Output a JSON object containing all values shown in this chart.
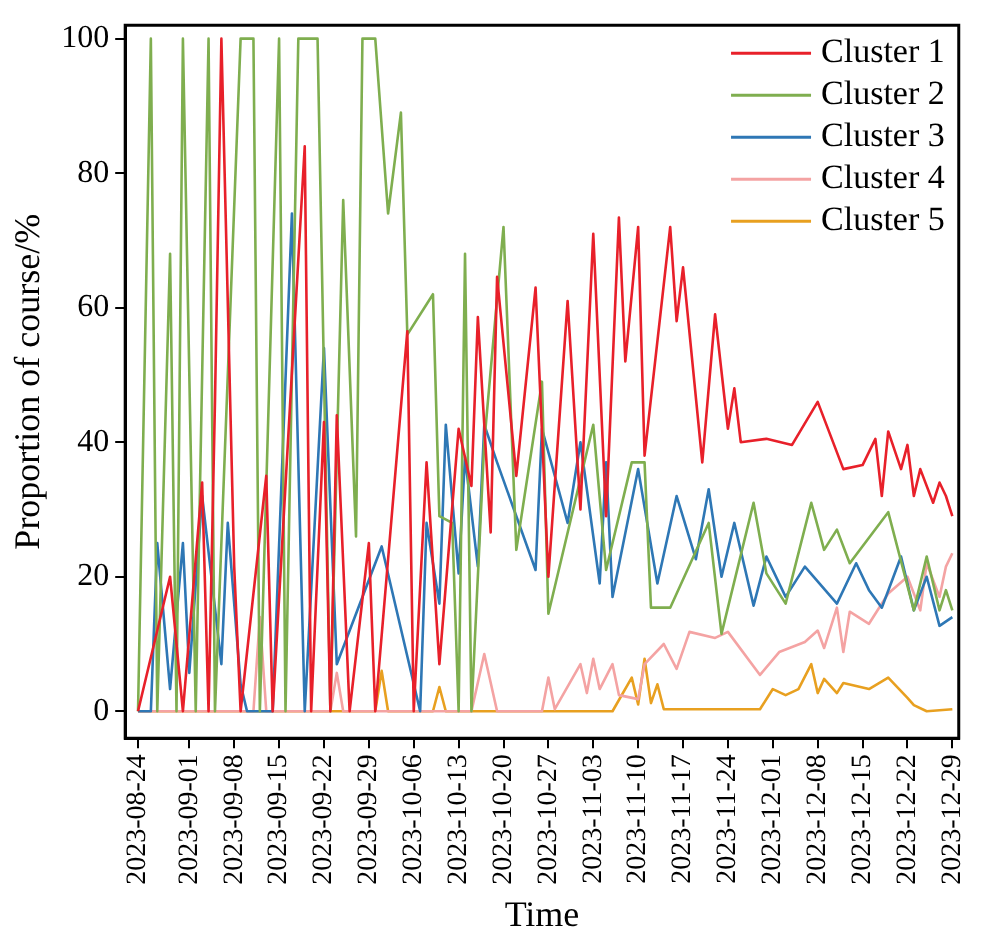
{
  "chart_data": {
    "type": "line",
    "xlabel": "Time",
    "ylabel": "Proportion of course/%",
    "xlim": [
      "2023-08-22",
      "2023-12-30"
    ],
    "xticks": [
      "2023-08-24",
      "2023-09-01",
      "2023-09-08",
      "2023-09-15",
      "2023-09-22",
      "2023-09-29",
      "2023-10-06",
      "2023-10-13",
      "2023-10-20",
      "2023-10-27",
      "2023-11-03",
      "2023-11-10",
      "2023-11-17",
      "2023-11-24",
      "2023-12-01",
      "2023-12-08",
      "2023-12-15",
      "2023-12-22",
      "2023-12-29"
    ],
    "ylim": [
      -4,
      102
    ],
    "yticks": [
      0,
      20,
      40,
      60,
      80,
      100
    ],
    "grid": false,
    "legend": "top right",
    "marker": "none",
    "line_style": "solid",
    "series": [
      {
        "name": "Cluster 1",
        "color": "#e8202a",
        "x": [
          "2023-08-24",
          "2023-08-29",
          "2023-08-31",
          "2023-09-03",
          "2023-09-04",
          "2023-09-05",
          "2023-09-06",
          "2023-09-08",
          "2023-09-09",
          "2023-09-13",
          "2023-09-14",
          "2023-09-19",
          "2023-09-20",
          "2023-09-22",
          "2023-09-23",
          "2023-09-24",
          "2023-09-26",
          "2023-09-29",
          "2023-09-30",
          "2023-10-05",
          "2023-10-06",
          "2023-10-08",
          "2023-10-10",
          "2023-10-13",
          "2023-10-15",
          "2023-10-16",
          "2023-10-18",
          "2023-10-19",
          "2023-10-22",
          "2023-10-25",
          "2023-10-27",
          "2023-10-30",
          "2023-11-01",
          "2023-11-03",
          "2023-11-05",
          "2023-11-07",
          "2023-11-08",
          "2023-11-10",
          "2023-11-11",
          "2023-11-15",
          "2023-11-16",
          "2023-11-17",
          "2023-11-20",
          "2023-11-22",
          "2023-11-24",
          "2023-11-25",
          "2023-11-26",
          "2023-11-30",
          "2023-12-04",
          "2023-12-08",
          "2023-12-12",
          "2023-12-15",
          "2023-12-17",
          "2023-12-18",
          "2023-12-19",
          "2023-12-21",
          "2023-12-22",
          "2023-12-23",
          "2023-12-24",
          "2023-12-26",
          "2023-12-27",
          "2023-12-28",
          "2023-12-29"
        ],
        "values": [
          0,
          20,
          0,
          34,
          0,
          46,
          100,
          21.5,
          0,
          35,
          0,
          84,
          0,
          43,
          0,
          44,
          0,
          25,
          0,
          56.5,
          0,
          37,
          7,
          42,
          33.5,
          58.6,
          26.6,
          64.6,
          35,
          63,
          20,
          61,
          30,
          71,
          29,
          73.4,
          52,
          72,
          38,
          72,
          58,
          66,
          37,
          59,
          42,
          48,
          40,
          40.5,
          39.6,
          46,
          36,
          36.6,
          40.5,
          32,
          41.6,
          36,
          39.6,
          32,
          36,
          31,
          34,
          32,
          29
        ]
      },
      {
        "name": "Cluster 2",
        "color": "#7fae4f",
        "x": [
          "2023-08-24",
          "2023-08-26",
          "2023-08-27",
          "2023-08-29",
          "2023-08-30",
          "2023-08-31",
          "2023-09-02",
          "2023-09-04",
          "2023-09-05",
          "2023-09-09",
          "2023-09-11",
          "2023-09-12",
          "2023-09-15",
          "2023-09-16",
          "2023-09-18",
          "2023-09-21",
          "2023-09-23",
          "2023-09-25",
          "2023-09-27",
          "2023-09-28",
          "2023-09-30",
          "2023-10-02",
          "2023-10-04",
          "2023-10-05",
          "2023-10-09",
          "2023-10-10",
          "2023-10-12",
          "2023-10-13",
          "2023-10-14",
          "2023-10-15",
          "2023-10-17",
          "2023-10-20",
          "2023-10-22",
          "2023-10-26",
          "2023-10-27",
          "2023-11-03",
          "2023-11-05",
          "2023-11-09",
          "2023-11-11",
          "2023-11-12",
          "2023-11-15",
          "2023-11-21",
          "2023-11-23",
          "2023-11-28",
          "2023-11-30",
          "2023-12-03",
          "2023-12-07",
          "2023-12-09",
          "2023-12-11",
          "2023-12-13",
          "2023-12-19",
          "2023-12-23",
          "2023-12-25",
          "2023-12-27",
          "2023-12-28",
          "2023-12-29"
        ],
        "values": [
          0,
          100,
          0,
          68,
          0,
          100,
          0,
          100,
          0,
          100,
          100,
          0,
          100,
          0,
          100,
          100,
          0,
          76,
          26,
          100,
          100,
          74,
          89,
          56,
          62,
          29,
          28,
          0,
          68,
          0,
          40,
          72,
          24,
          49,
          14.5,
          42.6,
          21,
          37,
          37,
          15.4,
          15.4,
          28,
          11.5,
          31,
          20.5,
          16,
          31,
          24,
          27,
          22,
          29.6,
          15,
          23,
          15,
          18,
          15
        ]
      },
      {
        "name": "Cluster 3",
        "color": "#2e77b5",
        "x": [
          "2023-08-24",
          "2023-08-26",
          "2023-08-27",
          "2023-08-29",
          "2023-08-31",
          "2023-09-01",
          "2023-09-03",
          "2023-09-06",
          "2023-09-07",
          "2023-09-09",
          "2023-09-10",
          "2023-09-14",
          "2023-09-17",
          "2023-09-19",
          "2023-09-22",
          "2023-09-24",
          "2023-10-01",
          "2023-10-07",
          "2023-10-08",
          "2023-10-10",
          "2023-10-11",
          "2023-10-13",
          "2023-10-14",
          "2023-10-16",
          "2023-10-17",
          "2023-10-19",
          "2023-10-25",
          "2023-10-26",
          "2023-10-30",
          "2023-11-01",
          "2023-11-04",
          "2023-11-05",
          "2023-11-06",
          "2023-11-10",
          "2023-11-13",
          "2023-11-16",
          "2023-11-19",
          "2023-11-21",
          "2023-11-23",
          "2023-11-25",
          "2023-11-28",
          "2023-11-30",
          "2023-12-03",
          "2023-12-06",
          "2023-12-11",
          "2023-12-14",
          "2023-12-16",
          "2023-12-18",
          "2023-12-21",
          "2023-12-23",
          "2023-12-25",
          "2023-12-27",
          "2023-12-29"
        ],
        "values": [
          0,
          0,
          25,
          3.3,
          25,
          5.7,
          32,
          7,
          28,
          4,
          0,
          0,
          74,
          0,
          54,
          7,
          24.5,
          0,
          28,
          16,
          42.6,
          20.5,
          37.8,
          21.5,
          42.6,
          37,
          21,
          42,
          28,
          40,
          19,
          37,
          17,
          36,
          19,
          32,
          22.6,
          33,
          20,
          28,
          15.7,
          23,
          17,
          21.5,
          16,
          22,
          18,
          15.4,
          23,
          15,
          20,
          12.7,
          14
        ]
      },
      {
        "name": "Cluster 4",
        "color": "#f4a3a3",
        "x": [
          "2023-08-24",
          "2023-09-11",
          "2023-09-12",
          "2023-09-13",
          "2023-09-23",
          "2023-09-24",
          "2023-09-25",
          "2023-10-15",
          "2023-10-17",
          "2023-10-19",
          "2023-10-26",
          "2023-10-27",
          "2023-10-28",
          "2023-11-01",
          "2023-11-02",
          "2023-11-03",
          "2023-11-04",
          "2023-11-06",
          "2023-11-07",
          "2023-11-10",
          "2023-11-11",
          "2023-11-14",
          "2023-11-16",
          "2023-11-18",
          "2023-11-22",
          "2023-11-24",
          "2023-11-29",
          "2023-12-02",
          "2023-12-06",
          "2023-12-08",
          "2023-12-09",
          "2023-12-11",
          "2023-12-12",
          "2023-12-13",
          "2023-12-16",
          "2023-12-19",
          "2023-12-22",
          "2023-12-24",
          "2023-12-25",
          "2023-12-27",
          "2023-12-28",
          "2023-12-29"
        ],
        "values": [
          0,
          0,
          14,
          0,
          0,
          5.7,
          0,
          0,
          8.5,
          0,
          0,
          5,
          0.3,
          7,
          2.7,
          7.8,
          3.3,
          7,
          2.4,
          1.8,
          7,
          10,
          6.3,
          11.8,
          10.9,
          11.8,
          5.4,
          8.8,
          10.3,
          12,
          9.4,
          15.4,
          8.8,
          14.8,
          13,
          17.5,
          20,
          15,
          22,
          17,
          21.5,
          23.5
        ]
      },
      {
        "name": "Cluster 5",
        "color": "#e8a020",
        "x": [
          "2023-08-24",
          "2023-09-30",
          "2023-10-01",
          "2023-10-02",
          "2023-10-09",
          "2023-10-10",
          "2023-10-11",
          "2023-11-06",
          "2023-11-09",
          "2023-11-10",
          "2023-11-11",
          "2023-11-12",
          "2023-11-13",
          "2023-11-14",
          "2023-11-29",
          "2023-12-01",
          "2023-12-03",
          "2023-12-05",
          "2023-12-07",
          "2023-12-08",
          "2023-12-09",
          "2023-12-11",
          "2023-12-12",
          "2023-12-16",
          "2023-12-19",
          "2023-12-22",
          "2023-12-23",
          "2023-12-25",
          "2023-12-29"
        ],
        "values": [
          0,
          0,
          6,
          0,
          0,
          3.6,
          0,
          0,
          5,
          1,
          7.8,
          1.2,
          4,
          0.3,
          0.3,
          3.3,
          2.4,
          3.3,
          7,
          2.7,
          4.8,
          2.7,
          4.2,
          3.3,
          5,
          2,
          0.9,
          0,
          0.3
        ]
      }
    ]
  }
}
